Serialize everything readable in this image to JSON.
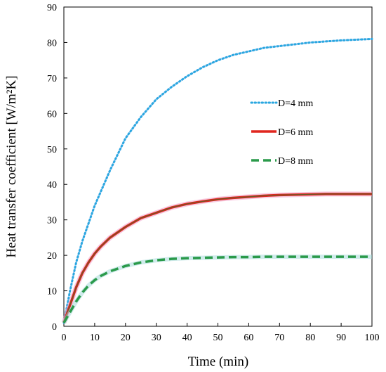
{
  "chart_data": {
    "type": "line",
    "xlabel": "Time (min)",
    "ylabel": "Heat transfer coefficient [W/m²K]",
    "xlim": [
      0,
      100
    ],
    "ylim": [
      0,
      90
    ],
    "xticks": [
      0,
      10,
      20,
      30,
      40,
      50,
      60,
      70,
      80,
      90,
      100
    ],
    "yticks": [
      0,
      10,
      20,
      30,
      40,
      50,
      60,
      70,
      80,
      90
    ],
    "grid": false,
    "legend_position": "right-middle",
    "series": [
      {
        "name": "D=4 mm",
        "style": "dotted",
        "color": "#2aa7e0",
        "x": [
          0,
          2,
          4,
          6,
          8,
          10,
          12,
          15,
          20,
          25,
          30,
          35,
          40,
          45,
          50,
          55,
          60,
          65,
          70,
          75,
          80,
          85,
          90,
          95,
          100
        ],
        "y": [
          1,
          10,
          18,
          24,
          29,
          34,
          38,
          44,
          53,
          59,
          64,
          67.5,
          70.5,
          73,
          75,
          76.5,
          77.5,
          78.5,
          79,
          79.5,
          80,
          80.3,
          80.6,
          80.8,
          81
        ]
      },
      {
        "name": "D=6 mm",
        "style": "solid",
        "color": "#e0261f",
        "x": [
          0,
          2,
          4,
          6,
          8,
          10,
          12,
          15,
          20,
          25,
          30,
          35,
          40,
          45,
          50,
          55,
          60,
          65,
          70,
          75,
          80,
          85,
          90,
          95,
          100
        ],
        "y": [
          1,
          6,
          11,
          15,
          18,
          20.5,
          22.5,
          25,
          28,
          30.5,
          32,
          33.5,
          34.5,
          35.2,
          35.8,
          36.2,
          36.5,
          36.8,
          37,
          37.1,
          37.2,
          37.3,
          37.3,
          37.3,
          37.3
        ]
      },
      {
        "name": "D=8 mm",
        "style": "dashed",
        "color": "#2a9a4a",
        "x": [
          0,
          2,
          4,
          6,
          8,
          10,
          12,
          15,
          20,
          25,
          30,
          35,
          40,
          45,
          50,
          55,
          60,
          65,
          70,
          75,
          80,
          85,
          90,
          95,
          100
        ],
        "y": [
          1,
          4,
          7,
          9.5,
          11.5,
          13,
          14.2,
          15.5,
          17,
          18,
          18.6,
          19,
          19.2,
          19.3,
          19.4,
          19.5,
          19.5,
          19.6,
          19.6,
          19.6,
          19.6,
          19.6,
          19.6,
          19.6,
          19.6
        ]
      }
    ]
  }
}
